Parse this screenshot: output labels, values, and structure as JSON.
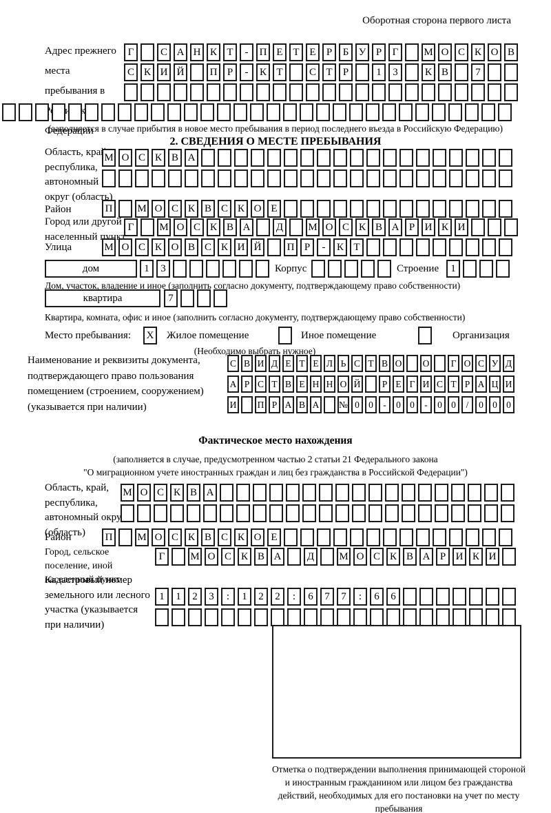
{
  "page": {
    "corner_note": "Оборотная сторона первого листа"
  },
  "prev_address": {
    "label": "Адрес прежнего места пребывания в Российской Федерации",
    "row1": "Г САНКТ-ПЕТЕРБУРГ МОСКОВ",
    "row2": "СКИЙ ПР-КТ СТР 13 КВ 7",
    "row3": "",
    "row4": "",
    "note": "(заполняется в случае прибытия в новое место пребывания в период последнего въезда в Российскую Федерацию)"
  },
  "section2": {
    "title": "2. СВЕДЕНИЯ О МЕСТЕ ПРЕБЫВАНИЯ",
    "oblast_label": "Область, край, республика, автономный округ (область)",
    "oblast_row1": "МОСКВА",
    "oblast_row2": "",
    "raion_label": "Район",
    "raion_row": "П МОСКВСКОЕ",
    "gorod_label": "Город или другой населенный пункт",
    "gorod_row": "Г МОСКВА Д МОСКВАРИКИ",
    "ulitsa_label": "Улица",
    "ulitsa_row": "МОСКОВСКИЙ ПР-КТ",
    "dom_label": "дом",
    "dom_cells": "13",
    "korpus_label": "Корпус",
    "korpus_cells": "",
    "stroenie_label": "Строение",
    "stroenie_cells": "1",
    "dom_note": "Дом, участок, владение и иное (заполнить согласно документу, подтверждающему право собственности)",
    "kvartira_label": "квартира",
    "kvartira_cells": "7",
    "kvartira_note": "Квартира, комната, офис и иное (заполнить согласно документу, подтверждающему право собственности)",
    "stay": {
      "label": "Место пребывания:",
      "zhiloe": {
        "label": "Жилое помещение",
        "checked": "X"
      },
      "inoe": {
        "label": "Иное помещение",
        "checked": ""
      },
      "org": {
        "label": "Организация",
        "checked": ""
      },
      "note": "(Необходимо выбрать нужное)"
    },
    "doc_label": "Наименование и реквизиты документа, подтверждающего право пользования помещением (строением, сооружением) (указывается при наличии)",
    "doc_row1": "СВИДЕТЕЛЬСТВО О ГОСУД",
    "doc_row2": "АРСТВЕННОЙ РЕГИСТРАЦИ",
    "doc_row3": "И ПРАВА №00-00-00/000"
  },
  "fact": {
    "title": "Фактическое место нахождения",
    "note1": "(заполняется в случае, предусмотренном частью 2 статьи 21 Федерального закона",
    "note2": "\"О миграционном учете иностранных граждан и лиц без гражданства в Российской Федерации\")",
    "oblast_label": "Область, край, республика, автономный округ (область)",
    "oblast_row1": "МОСКВА",
    "oblast_row2": "",
    "raion_label": "Район",
    "raion_row": "П МОСКВСКОЕ",
    "gorod_label": "Город, сельское поселение, иной населенный пункт",
    "gorod_row": "Г МОСКВА Д МОСКВАРИКИ",
    "kadastr_label": "Кадастровый номер земельного или лесного участка (указывается при наличии)",
    "kadastr_row1": "1123:122:677:66",
    "kadastr_row2": "",
    "stamp_note": "Отметка о подтверждении выполнения принимающей стороной и иностранным гражданином или лицом без гражданства действий, необходимых для его постановки на учет по месту пребывания"
  }
}
